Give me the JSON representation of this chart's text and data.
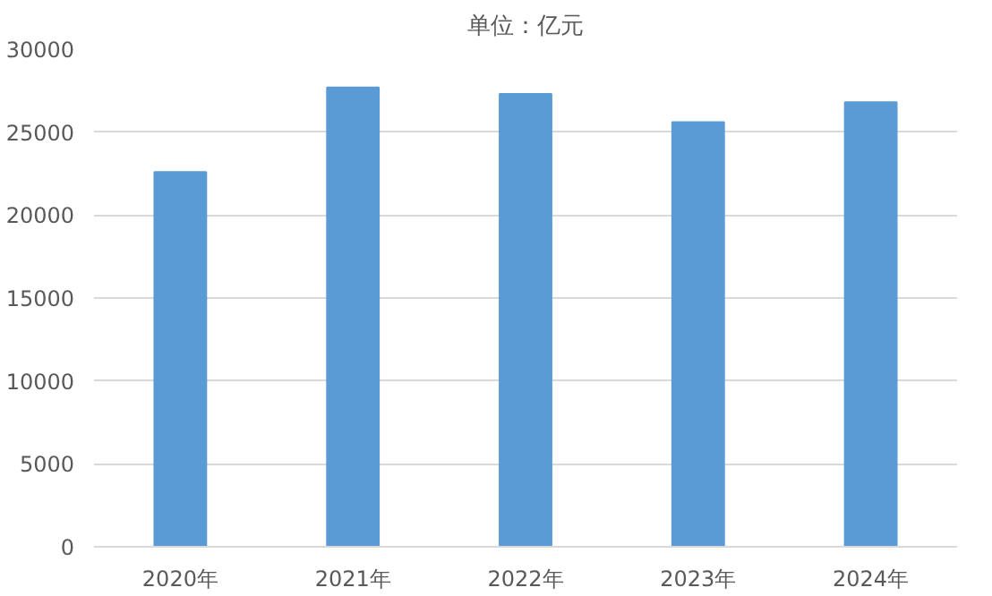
{
  "chart_data": {
    "type": "bar",
    "title": "单位：亿元",
    "categories": [
      "2020年",
      "2021年",
      "2022年",
      "2023年",
      "2024年"
    ],
    "values": [
      22600,
      27700,
      27300,
      25600,
      26800
    ],
    "color": "#5b9bd5",
    "ylim": [
      0,
      30000
    ],
    "yticks": [
      0,
      5000,
      10000,
      15000,
      20000,
      25000,
      30000
    ],
    "grid": "y"
  }
}
